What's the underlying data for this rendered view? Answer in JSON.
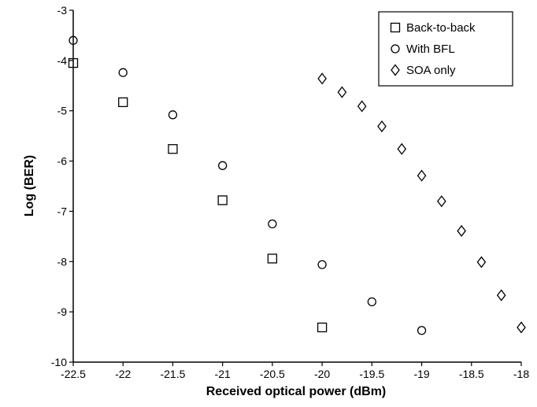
{
  "chart_data": {
    "type": "scatter",
    "title": "",
    "xlabel": "Received optical power (dBm)",
    "ylabel": "Log (BER)",
    "xlim": [
      -22.5,
      -18
    ],
    "ylim": [
      -10,
      -3
    ],
    "x_ticks": [
      -22.5,
      -22,
      -21.5,
      -21,
      -20.5,
      -20,
      -19.5,
      -19,
      -18.5,
      -18
    ],
    "x_tick_labels": [
      "-22.5",
      "-22",
      "-21.5",
      "-21",
      "-20.5",
      "-20",
      "-19.5",
      "-19",
      "-18.5",
      "-18"
    ],
    "y_ticks": [
      -3,
      -4,
      -5,
      -6,
      -7,
      -8,
      -9,
      -10
    ],
    "y_tick_labels": [
      "-3",
      "-4",
      "-5",
      "-6",
      "-7",
      "-8",
      "-9",
      "-10"
    ],
    "grid": false,
    "legend_position": "top-right",
    "series": [
      {
        "name": "Back-to-back",
        "marker": "square",
        "points": [
          {
            "x": -22.5,
            "y": -4.05
          },
          {
            "x": -22.0,
            "y": -4.83
          },
          {
            "x": -21.5,
            "y": -5.76
          },
          {
            "x": -21.0,
            "y": -6.78
          },
          {
            "x": -20.5,
            "y": -7.94
          },
          {
            "x": -20.0,
            "y": -9.31
          }
        ]
      },
      {
        "name": "With BFL",
        "marker": "circle",
        "points": [
          {
            "x": -22.5,
            "y": -3.6
          },
          {
            "x": -22.0,
            "y": -4.24
          },
          {
            "x": -21.5,
            "y": -5.08
          },
          {
            "x": -21.0,
            "y": -6.09
          },
          {
            "x": -20.5,
            "y": -7.25
          },
          {
            "x": -20.0,
            "y": -8.06
          },
          {
            "x": -19.5,
            "y": -8.8
          },
          {
            "x": -19.0,
            "y": -9.37
          }
        ]
      },
      {
        "name": "SOA only",
        "marker": "diamond",
        "points": [
          {
            "x": -20.0,
            "y": -4.36
          },
          {
            "x": -19.8,
            "y": -4.63
          },
          {
            "x": -19.6,
            "y": -4.91
          },
          {
            "x": -19.4,
            "y": -5.31
          },
          {
            "x": -19.2,
            "y": -5.76
          },
          {
            "x": -19.0,
            "y": -6.29
          },
          {
            "x": -18.8,
            "y": -6.8
          },
          {
            "x": -18.6,
            "y": -7.39
          },
          {
            "x": -18.4,
            "y": -8.01
          },
          {
            "x": -18.2,
            "y": -8.67
          },
          {
            "x": -18.0,
            "y": -9.31
          }
        ]
      }
    ]
  }
}
